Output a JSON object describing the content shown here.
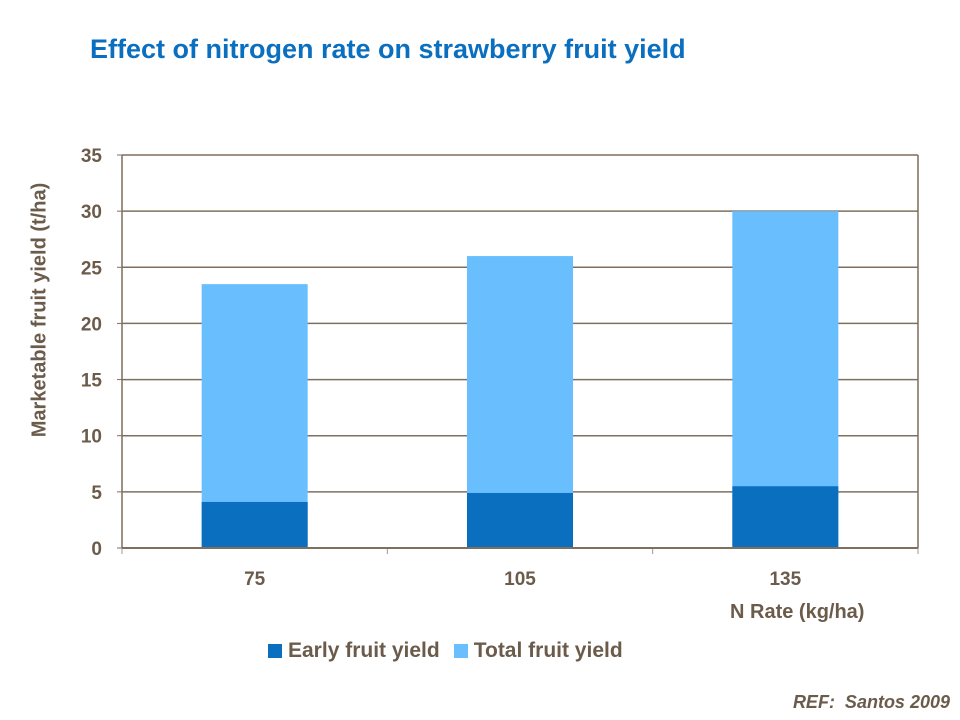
{
  "chart_data": {
    "type": "bar",
    "title": "Effect of nitrogen rate on strawberry fruit yield",
    "xlabel": "N Rate (kg/ha)",
    "ylabel": "Marketable fruit yield (t/ha)",
    "categories": [
      "75",
      "105",
      "135"
    ],
    "series": [
      {
        "name": "Early fruit yield",
        "values": [
          4.1,
          4.9,
          5.5
        ],
        "color": "#0B6FC0"
      },
      {
        "name": "Total fruit yield",
        "values": [
          23.5,
          26.0,
          30.0
        ],
        "color": "#69BEFE"
      }
    ],
    "ylim": [
      0,
      35
    ],
    "yticks": [
      "0",
      "5",
      "10",
      "15",
      "20",
      "25",
      "30",
      "35"
    ],
    "grid": true,
    "legend": "bottom",
    "reference": "REF:  Santos 2009"
  }
}
